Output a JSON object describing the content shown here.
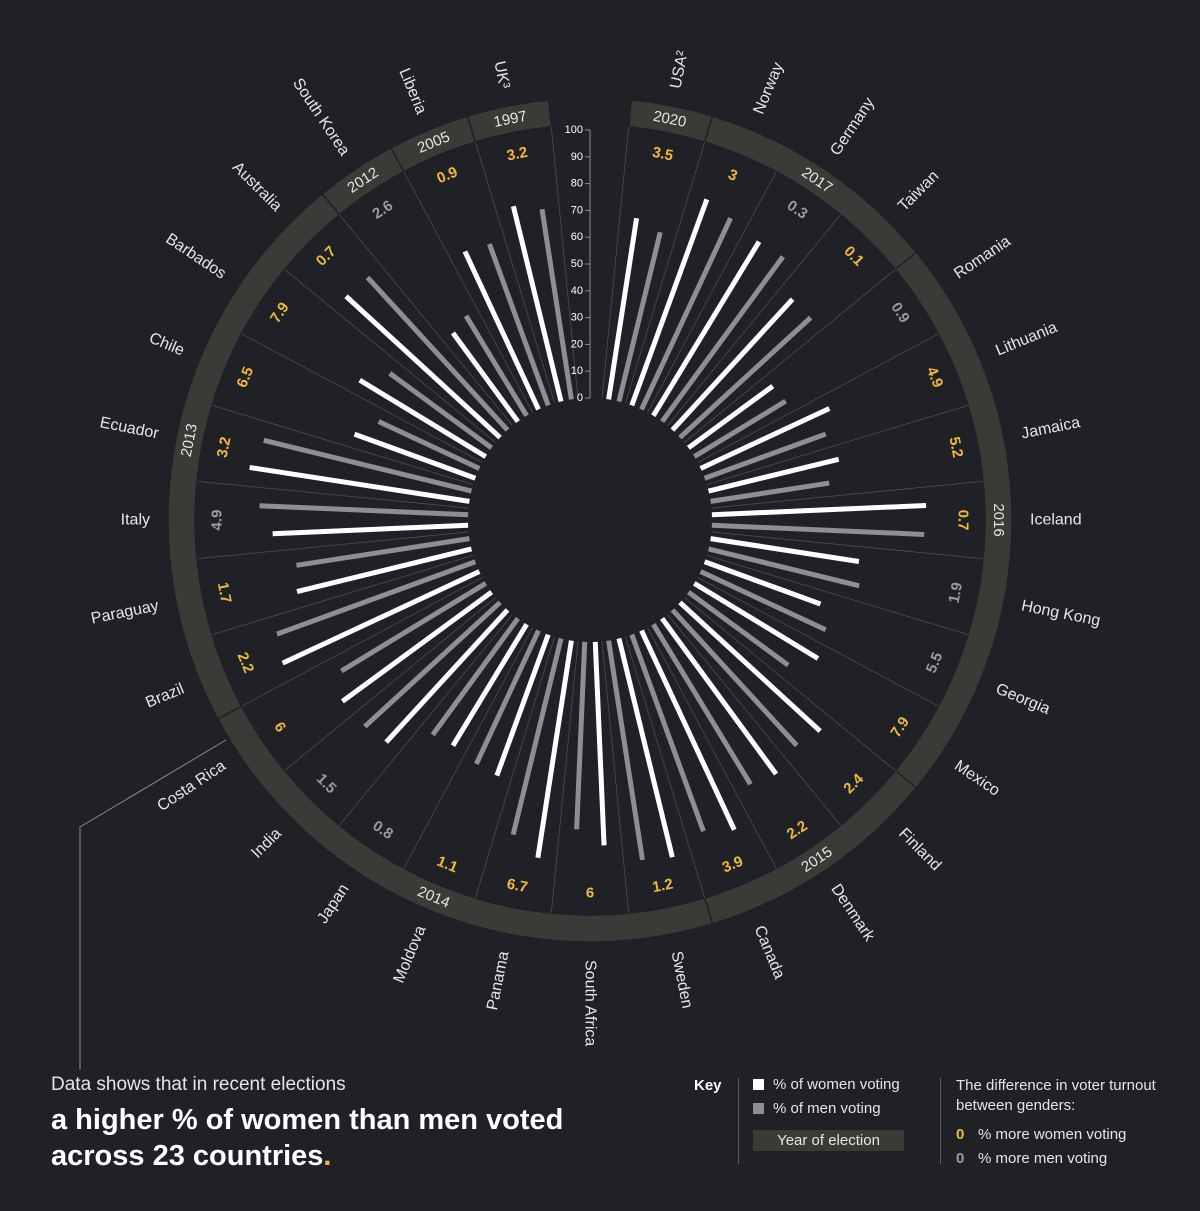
{
  "chart_data": {
    "type": "radial bar",
    "title": "",
    "axis": {
      "ticks": [
        0,
        10,
        20,
        30,
        40,
        50,
        60,
        70,
        80,
        90,
        100
      ],
      "range": [
        0,
        100
      ]
    },
    "series": [
      {
        "name": "% of women voting",
        "color": "#ffffff"
      },
      {
        "name": "% of men voting",
        "color": "#8e8f92"
      }
    ],
    "countries": [
      {
        "name": "USA²",
        "women": 68.4,
        "men": 65.0,
        "diff": "3.5",
        "more": "women"
      },
      {
        "name": "Norway",
        "women": 81.8,
        "men": 78.7,
        "diff": "3",
        "more": "women"
      },
      {
        "name": "Germany",
        "women": 76.0,
        "men": 76.3,
        "diff": "0.3",
        "more": "men"
      },
      {
        "name": "Taiwan",
        "women": 66.3,
        "men": 66.2,
        "diff": "0.1",
        "more": "women"
      },
      {
        "name": "Romania",
        "women": 39.0,
        "men": 39.9,
        "diff": "0.9",
        "more": "men"
      },
      {
        "name": "Lithuania",
        "women": 53.0,
        "men": 48.1,
        "diff": "4.9",
        "more": "women"
      },
      {
        "name": "Jamaica",
        "women": 50.0,
        "men": 44.8,
        "diff": "5.2",
        "more": "women"
      },
      {
        "name": "Iceland",
        "women": 80.0,
        "men": 79.3,
        "diff": "0.7",
        "more": "women"
      },
      {
        "name": "Hong Kong",
        "women": 56.0,
        "men": 57.9,
        "diff": "1.9",
        "more": "men"
      },
      {
        "name": "Georgia",
        "women": 46.0,
        "men": 51.5,
        "diff": "5.5",
        "more": "men"
      },
      {
        "name": "Mexico",
        "women": 54.0,
        "men": 46.1,
        "diff": "7.9",
        "more": "women"
      },
      {
        "name": "Finland",
        "women": 71.0,
        "men": 68.6,
        "diff": "2.4",
        "more": "women"
      },
      {
        "name": "Denmark",
        "women": 72.0,
        "men": 69.8,
        "diff": "2.2",
        "more": "women"
      },
      {
        "name": "Canada",
        "women": 82.0,
        "men": 78.1,
        "diff": "3.9",
        "more": "women"
      },
      {
        "name": "Sweden",
        "women": 84.0,
        "men": 82.8,
        "diff": "1.2",
        "more": "women"
      },
      {
        "name": "South Africa",
        "women": 76.0,
        "men": 70.0,
        "diff": "6",
        "more": "women"
      },
      {
        "name": "Panama",
        "women": 82.0,
        "men": 75.3,
        "diff": "6.7",
        "more": "women"
      },
      {
        "name": "Moldova",
        "women": 56.0,
        "men": 54.9,
        "diff": "1.1",
        "more": "women"
      },
      {
        "name": "Japan",
        "women": 53.0,
        "men": 53.8,
        "diff": "0.8",
        "more": "men"
      },
      {
        "name": "India",
        "women": 67.0,
        "men": 68.5,
        "diff": "1.5",
        "more": "men"
      },
      {
        "name": "Costa Rica",
        "women": 69.0,
        "men": 63.0,
        "diff": "6",
        "more": "women"
      },
      {
        "name": "Brazil",
        "women": 81.0,
        "men": 78.8,
        "diff": "2.2",
        "more": "women"
      },
      {
        "name": "Paraguay",
        "women": 67.0,
        "men": 65.3,
        "diff": "1.7",
        "more": "women"
      },
      {
        "name": "Italy",
        "women": 73.0,
        "men": 77.9,
        "diff": "4.9",
        "more": "men"
      },
      {
        "name": "Ecuador",
        "women": 83.0,
        "men": 79.8,
        "diff": "3.2",
        "more": "women"
      },
      {
        "name": "Chile",
        "women": 48.0,
        "men": 41.5,
        "diff": "6.5",
        "more": "women"
      },
      {
        "name": "Barbados",
        "women": 55.0,
        "men": 47.1,
        "diff": "7.9",
        "more": "women"
      },
      {
        "name": "Australia",
        "women": 78.0,
        "men": 77.3,
        "diff": "0.7",
        "more": "women"
      },
      {
        "name": "South Korea",
        "women": 41.0,
        "men": 43.6,
        "diff": "2.6",
        "more": "men"
      },
      {
        "name": "Liberia",
        "women": 65.0,
        "men": 64.1,
        "diff": "0.9",
        "more": "women"
      },
      {
        "name": "UK³",
        "women": 75.0,
        "men": 71.8,
        "diff": "3.2",
        "more": "women"
      }
    ],
    "years": [
      {
        "label": "2020",
        "from": 0,
        "to": 0
      },
      {
        "label": "2017",
        "from": 1,
        "to": 3
      },
      {
        "label": "2016",
        "from": 4,
        "to": 10
      },
      {
        "label": "2015",
        "from": 11,
        "to": 13
      },
      {
        "label": "2014",
        "from": 14,
        "to": 20
      },
      {
        "label": "2013",
        "from": 21,
        "to": 27
      },
      {
        "label": "2012",
        "from": 28,
        "to": 28
      },
      {
        "label": "2005",
        "from": 29,
        "to": 29
      },
      {
        "label": "1997",
        "from": 30,
        "to": 30
      }
    ]
  },
  "text": {
    "intro": "Data shows that in recent elections",
    "headline": "a higher % of women than men voted across 23 countries",
    "headline_dot": "."
  },
  "key": {
    "label": "Key",
    "women": "% of women voting",
    "men": "% of men voting",
    "year": "Year of election",
    "diff_title": "The difference in voter turnout between genders:",
    "more_women_sym": "0",
    "more_women": "% more women voting",
    "more_men_sym": "0",
    "more_men": "% more men voting"
  },
  "colors": {
    "background": "#1f2127",
    "women": "#ffffff",
    "men": "#8e8f92",
    "accent": "#f0b93a",
    "grey_diff": "#9b9c9f",
    "ring": "#3b3a36"
  }
}
